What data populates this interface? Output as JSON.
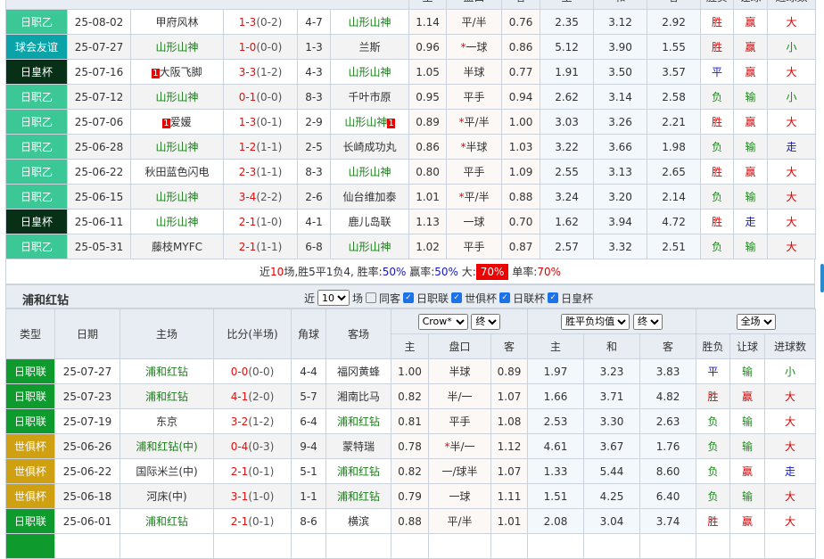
{
  "colors": {
    "日职乙": "#3cc896",
    "球会友谊": "#0aa3a8",
    "日皇杯": "#073017",
    "日职联": "#0e9a2c",
    "世俱杯": "#cfa011"
  },
  "team1": "山形山神",
  "team2": "浦和红钻",
  "top_header": {
    "main": "主",
    "pankou": "盘口",
    "away": "客",
    "win": "主",
    "draw": "和",
    "loss": "客",
    "res": "胜负",
    "hc": "让球",
    "goals": "进球数"
  },
  "top_rows": [
    [
      "日职乙",
      "25-08-02",
      "甲府风林",
      "",
      "1-3",
      "(0-2)",
      "4-7",
      "山形山神",
      "",
      "1.14",
      "",
      "平/半",
      "0.76",
      "2.35",
      "3.12",
      "2.92",
      "胜",
      "赢",
      "大"
    ],
    [
      "球会友谊",
      "25-07-27",
      "山形山神",
      "",
      "1-0",
      "(0-0)",
      "1-3",
      "兰斯",
      "",
      "0.96",
      "*",
      "一球",
      "0.86",
      "5.12",
      "3.90",
      "1.55",
      "胜",
      "赢",
      "小"
    ],
    [
      "日皇杯",
      "25-07-16",
      "大阪飞脚",
      "1",
      "3-3",
      "(1-2)",
      "4-3",
      "山形山神",
      "",
      "1.05",
      "",
      "半球",
      "0.77",
      "1.91",
      "3.50",
      "3.57",
      "平",
      "赢",
      "大"
    ],
    [
      "日职乙",
      "25-07-12",
      "山形山神",
      "",
      "0-1",
      "(0-0)",
      "8-3",
      "千叶市原",
      "",
      "0.95",
      "",
      "平手",
      "0.94",
      "2.62",
      "3.14",
      "2.58",
      "负",
      "输",
      "小"
    ],
    [
      "日职乙",
      "25-07-06",
      "爱媛",
      "1",
      "1-3",
      "(0-1)",
      "2-9",
      "山形山神",
      "1",
      "0.89",
      "*",
      "平/半",
      "1.00",
      "3.03",
      "3.26",
      "2.21",
      "胜",
      "赢",
      "大"
    ],
    [
      "日职乙",
      "25-06-28",
      "山形山神",
      "",
      "1-2",
      "(1-1)",
      "2-5",
      "长崎成功丸",
      "",
      "0.86",
      "*",
      "半球",
      "1.03",
      "3.22",
      "3.66",
      "1.98",
      "负",
      "输",
      "走"
    ],
    [
      "日职乙",
      "25-06-22",
      "秋田蓝色闪电",
      "",
      "2-3",
      "(1-1)",
      "8-3",
      "山形山神",
      "",
      "0.80",
      "",
      "平手",
      "1.09",
      "2.55",
      "3.13",
      "2.65",
      "胜",
      "赢",
      "大"
    ],
    [
      "日职乙",
      "25-06-15",
      "山形山神",
      "",
      "3-4",
      "(2-2)",
      "2-6",
      "仙台维加泰",
      "",
      "1.01",
      "*",
      "平/半",
      "0.88",
      "3.24",
      "3.20",
      "2.14",
      "负",
      "输",
      "大"
    ],
    [
      "日皇杯",
      "25-06-11",
      "山形山神",
      "",
      "2-1",
      "(1-0)",
      "4-1",
      "鹿儿岛联",
      "",
      "1.13",
      "",
      "一球",
      "0.70",
      "1.62",
      "3.94",
      "4.72",
      "胜",
      "走",
      "大"
    ],
    [
      "日职乙",
      "25-05-31",
      "藤枝MYFC",
      "",
      "2-1",
      "(1-1)",
      "6-8",
      "山形山神",
      "",
      "1.02",
      "",
      "平手",
      "0.87",
      "2.57",
      "3.32",
      "2.51",
      "负",
      "输",
      "大"
    ]
  ],
  "summary": {
    "p1": "近",
    "n": "10",
    "p2": "场,胜5平1负4, 胜率:",
    "win_rate": "50%",
    "p3": " 赢率:",
    "cover_rate": "50%",
    "p4": " 大:",
    "big_rate": "70%",
    "p5": " 单率:",
    "odd_rate": "70%"
  },
  "section2": {
    "title": "浦和红钻",
    "near": "近",
    "count": "10",
    "games": "场",
    "same_away": "同客",
    "filters": [
      "日职联",
      "世俱杯",
      "日联杯",
      "日皇杯"
    ]
  },
  "bottom_header": {
    "type": "类型",
    "date": "日期",
    "home": "主场",
    "score": "比分(半场)",
    "corner": "角球",
    "away": "客场",
    "company": "Crow*",
    "stage1": "终",
    "avg": "胜平负均值",
    "stage2": "终",
    "scope": "全场",
    "main": "主",
    "pankou": "盘口",
    "aw": "客",
    "win": "主",
    "draw": "和",
    "loss": "客",
    "res": "胜负",
    "hc": "让球",
    "goals": "进球数"
  },
  "bottom_rows": [
    [
      "日职联",
      "25-07-27",
      "浦和红钻",
      "",
      "0-0",
      "(0-0)",
      "4-4",
      "福冈黄蜂",
      "",
      "1.00",
      "",
      "半球",
      "0.89",
      "1.97",
      "3.23",
      "3.83",
      "平",
      "输",
      "小"
    ],
    [
      "日职联",
      "25-07-23",
      "浦和红钻",
      "",
      "4-1",
      "(2-0)",
      "5-7",
      "湘南比马",
      "",
      "0.82",
      "",
      "半/一",
      "1.07",
      "1.66",
      "3.71",
      "4.82",
      "胜",
      "赢",
      "大"
    ],
    [
      "日职联",
      "25-07-19",
      "东京",
      "",
      "3-2",
      "(1-2)",
      "6-4",
      "浦和红钻",
      "",
      "0.81",
      "",
      "平手",
      "1.08",
      "2.53",
      "3.30",
      "2.63",
      "负",
      "输",
      "大"
    ],
    [
      "世俱杯",
      "25-06-26",
      "浦和红钻(中)",
      "",
      "0-4",
      "(0-3)",
      "9-4",
      "蒙特瑞",
      "",
      "0.78",
      "*",
      "半/一",
      "1.12",
      "4.61",
      "3.67",
      "1.76",
      "负",
      "输",
      "大"
    ],
    [
      "世俱杯",
      "25-06-22",
      "国际米兰(中)",
      "",
      "2-1",
      "(0-1)",
      "5-1",
      "浦和红钻",
      "",
      "0.82",
      "",
      "一/球半",
      "1.07",
      "1.33",
      "5.44",
      "8.60",
      "负",
      "赢",
      "走"
    ],
    [
      "世俱杯",
      "25-06-18",
      "河床(中)",
      "",
      "3-1",
      "(1-0)",
      "1-1",
      "浦和红钻",
      "",
      "0.79",
      "",
      "一球",
      "1.11",
      "1.51",
      "4.25",
      "6.40",
      "负",
      "输",
      "大"
    ],
    [
      "日职联",
      "25-06-01",
      "浦和红钻",
      "",
      "2-1",
      "(0-1)",
      "8-6",
      "横滨",
      "",
      "0.88",
      "",
      "平/半",
      "1.01",
      "2.08",
      "3.04",
      "3.74",
      "胜",
      "赢",
      "大"
    ]
  ]
}
